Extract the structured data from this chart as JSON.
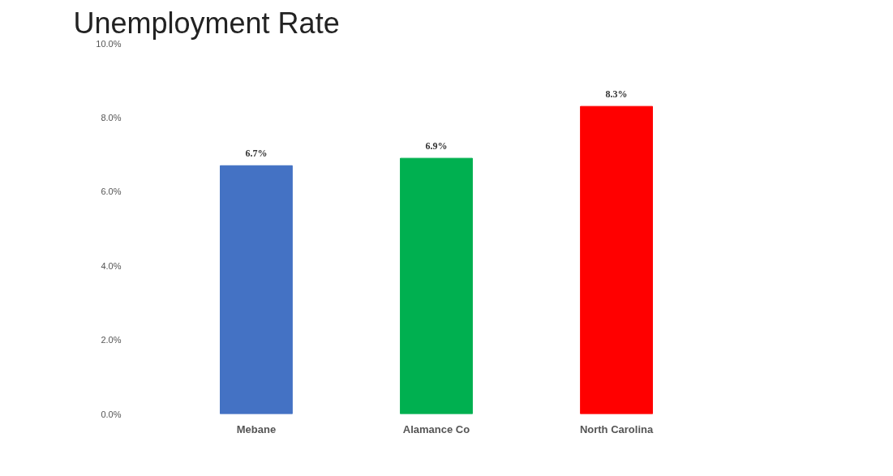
{
  "chart_data": {
    "type": "bar",
    "title": "Unemployment Rate",
    "categories": [
      "Mebane",
      "Alamance Co",
      "North Carolina"
    ],
    "values": [
      6.7,
      6.9,
      8.3
    ],
    "colors": [
      "#4472c4",
      "#00b050",
      "#ff0000"
    ],
    "value_labels": [
      "6.7%",
      "6.9%",
      "8.3%"
    ],
    "ylim": [
      0,
      10
    ],
    "yticks": [
      {
        "value": 0,
        "label": "0.0%"
      },
      {
        "value": 2,
        "label": "2.0%"
      },
      {
        "value": 4,
        "label": "4.0%"
      },
      {
        "value": 6,
        "label": "6.0%"
      },
      {
        "value": 8,
        "label": "8.0%"
      },
      {
        "value": 10,
        "label": "10.0%"
      }
    ],
    "grid": false
  }
}
